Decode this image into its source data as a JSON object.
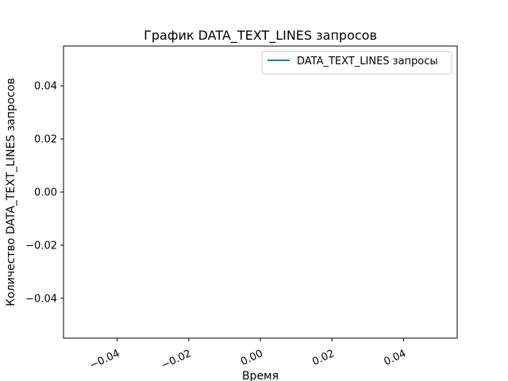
{
  "chart_data": {
    "type": "line",
    "title": "График DATA_TEXT_LINES запросов",
    "xlabel": "Время",
    "ylabel": "Количество DATA_TEXT_LINES запросов",
    "xlim": [
      -0.055,
      0.055
    ],
    "ylim": [
      -0.055,
      0.055
    ],
    "x_ticks": [
      -0.04,
      -0.02,
      0.0,
      0.02,
      0.04
    ],
    "x_tick_labels": [
      "−0.04",
      "−0.02",
      "0.00",
      "0.02",
      "0.04"
    ],
    "x_tick_rotation_deg": 25,
    "y_ticks": [
      -0.04,
      -0.02,
      0.0,
      0.02,
      0.04
    ],
    "y_tick_labels": [
      "−0.04",
      "−0.02",
      "0.00",
      "0.02",
      "0.04"
    ],
    "grid": false,
    "legend_position": "top-right",
    "series": [
      {
        "name": "DATA_TEXT_LINES запросы",
        "color": "#1f77b4",
        "x": [],
        "y": []
      }
    ]
  }
}
